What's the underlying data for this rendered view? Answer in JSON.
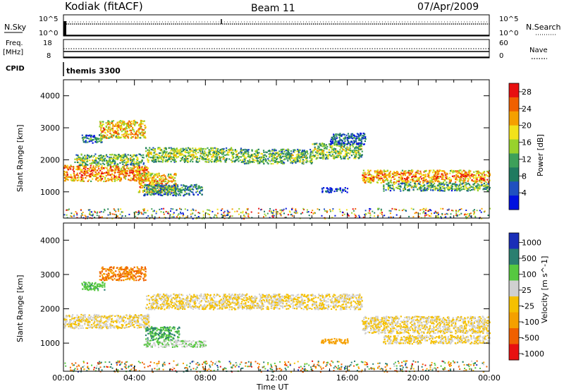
{
  "header": {
    "station": "Kodiak (fitACF)",
    "beam": "Beam 11",
    "date": "07/Apr/2009"
  },
  "strips": {
    "sky_label": "N.Sky",
    "sky_ticks": [
      "10^5",
      "10^0"
    ],
    "search_label": "N.Search",
    "search_ticks": [
      "10^5",
      "10^0"
    ],
    "freq_label_1": "Freq.",
    "freq_label_2": "[MHz]",
    "freq_ticks": [
      "18",
      "8"
    ],
    "nave_label": "Nave",
    "nave_ticks": [
      "60",
      "0"
    ],
    "cpid_label": "CPID",
    "cpid_value": "themis 3300"
  },
  "chart_data": [
    {
      "type": "heatmap",
      "name": "power",
      "ylabel": "Slant Range [km]",
      "xlabel": "Time UT",
      "x_ticks": [
        "00:00",
        "04:00",
        "08:00",
        "12:00",
        "16:00",
        "20:00",
        "00:00"
      ],
      "y_ticks": [
        1000,
        2000,
        3000,
        4000
      ],
      "ylim": [
        180,
        4500
      ],
      "xlim_hours": [
        0,
        24
      ],
      "colorbar": {
        "label": "Power [dB]",
        "ticks": [
          "4",
          "8",
          "12",
          "16",
          "20",
          "24",
          "28"
        ],
        "range": [
          0,
          30
        ],
        "colors": [
          "#0010e0",
          "#2050c0",
          "#1f7a60",
          "#3da05a",
          "#98d22c",
          "#f2e21a",
          "#f5a000",
          "#f06000",
          "#e81010"
        ]
      },
      "bands": [
        {
          "t0": 0.0,
          "t1": 4.8,
          "r0": 1350,
          "r1": 1850,
          "value": 25
        },
        {
          "t0": 0.6,
          "t1": 4.5,
          "r0": 1850,
          "r1": 2200,
          "value": 15
        },
        {
          "t0": 2.0,
          "t1": 4.6,
          "r0": 2700,
          "r1": 3250,
          "value": 22
        },
        {
          "t0": 1.0,
          "t1": 2.2,
          "r0": 2550,
          "r1": 2800,
          "value": 10
        },
        {
          "t0": 4.2,
          "t1": 6.3,
          "r0": 1000,
          "r1": 1600,
          "value": 22
        },
        {
          "t0": 4.5,
          "t1": 7.8,
          "r0": 900,
          "r1": 1250,
          "value": 11
        },
        {
          "t0": 4.6,
          "t1": 10.0,
          "r0": 1950,
          "r1": 2400,
          "value": 17
        },
        {
          "t0": 10.0,
          "t1": 14.0,
          "r0": 1900,
          "r1": 2350,
          "value": 15
        },
        {
          "t0": 14.0,
          "t1": 16.8,
          "r0": 2050,
          "r1": 2550,
          "value": 16
        },
        {
          "t0": 15.0,
          "t1": 17.0,
          "r0": 2500,
          "r1": 2850,
          "value": 8
        },
        {
          "t0": 16.8,
          "t1": 24.0,
          "r0": 1300,
          "r1": 1700,
          "value": 24
        },
        {
          "t0": 18.0,
          "t1": 24.0,
          "r0": 1050,
          "r1": 1300,
          "value": 14
        },
        {
          "t0": 14.5,
          "t1": 16.0,
          "r0": 1000,
          "r1": 1150,
          "value": 6
        }
      ]
    },
    {
      "type": "heatmap",
      "name": "velocity",
      "ylabel": "Slant Range [km]",
      "xlabel": "Time UT",
      "x_ticks": [
        "00:00",
        "04:00",
        "08:00",
        "12:00",
        "16:00",
        "20:00",
        "00:00"
      ],
      "y_ticks": [
        1000,
        2000,
        3000,
        4000
      ],
      "ylim": [
        180,
        4500
      ],
      "xlim_hours": [
        0,
        24
      ],
      "colorbar": {
        "label": "Velocity [m s^-1]",
        "ticks": [
          "1000",
          "500",
          "100",
          "25",
          "-25",
          "-100",
          "-500",
          "-1000"
        ],
        "colors": [
          "#1a2eb8",
          "#2a7f70",
          "#56c840",
          "#d0d0d0",
          "#f5c000",
          "#f5a000",
          "#f06000",
          "#e81010"
        ]
      },
      "bands": [
        {
          "t0": 0.0,
          "t1": 4.8,
          "r0": 1450,
          "r1": 1850,
          "value": 0
        },
        {
          "t0": 2.0,
          "t1": 4.6,
          "r0": 2850,
          "r1": 3250,
          "value": -300
        },
        {
          "t0": 1.0,
          "t1": 2.3,
          "r0": 2550,
          "r1": 2800,
          "value": 250
        },
        {
          "t0": 4.6,
          "t1": 6.5,
          "r0": 1100,
          "r1": 1500,
          "value": 300
        },
        {
          "t0": 4.5,
          "t1": 8.0,
          "r0": 900,
          "r1": 1100,
          "value": 60
        },
        {
          "t0": 4.6,
          "t1": 16.8,
          "r0": 2000,
          "r1": 2450,
          "value": 0
        },
        {
          "t0": 16.8,
          "t1": 24.0,
          "r0": 1300,
          "r1": 1800,
          "value": 0
        },
        {
          "t0": 18.0,
          "t1": 24.0,
          "r0": 1000,
          "r1": 1250,
          "value": 0
        },
        {
          "t0": 14.5,
          "t1": 16.0,
          "r0": 1000,
          "r1": 1150,
          "value": -150
        }
      ]
    }
  ]
}
